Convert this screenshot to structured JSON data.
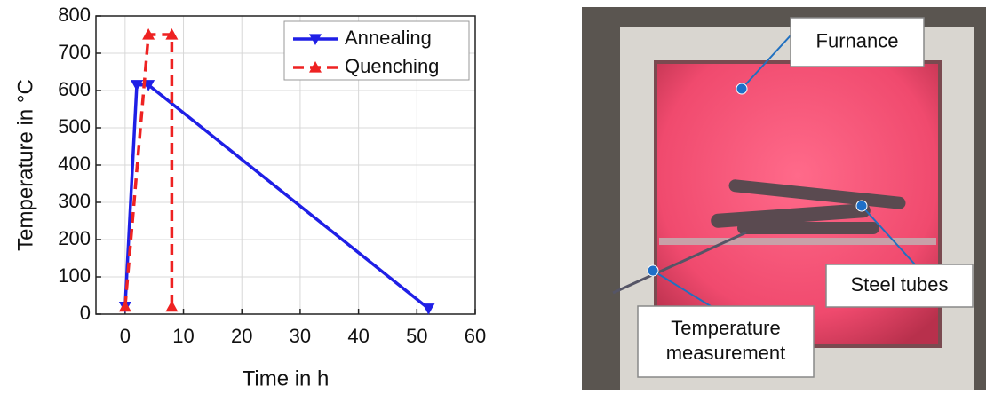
{
  "chart_data": {
    "type": "line",
    "x_label": "Time in h",
    "y_label": "Temperature in °C",
    "series": [
      {
        "name": "Annealing",
        "color": "#1f1fe6",
        "marker": "triangle-down",
        "dash": false,
        "x": [
          0,
          2,
          4,
          52
        ],
        "values": [
          20,
          615,
          615,
          15
        ]
      },
      {
        "name": "Quenching",
        "color": "#ee2222",
        "marker": "triangle-up",
        "dash": true,
        "x": [
          0,
          4,
          8,
          8
        ],
        "values": [
          20,
          750,
          750,
          20
        ]
      }
    ],
    "xlim": [
      -5,
      60
    ],
    "xticks": [
      0,
      10,
      20,
      30,
      40,
      50,
      60
    ],
    "ylim": [
      0,
      800
    ],
    "yticks": [
      0,
      100,
      200,
      300,
      400,
      500,
      600,
      700,
      800
    ],
    "grid": true,
    "legend": "upper-right"
  },
  "photo": {
    "labels": [
      {
        "lines": [
          "Furnance"
        ]
      },
      {
        "lines": [
          "Steel tubes"
        ]
      },
      {
        "lines": [
          "Temperature",
          "measurement"
        ]
      }
    ]
  }
}
